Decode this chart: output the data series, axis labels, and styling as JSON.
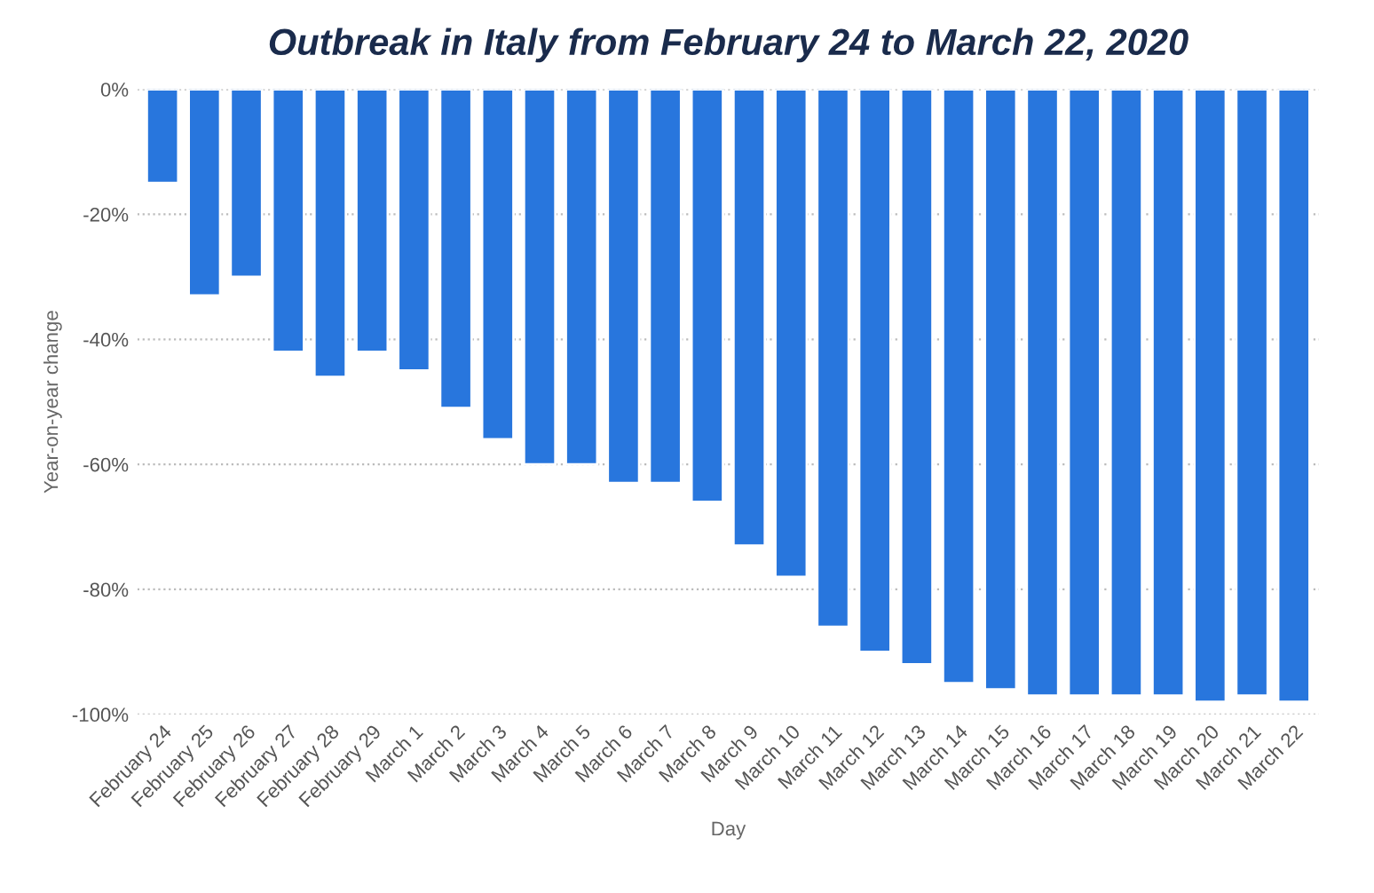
{
  "chart_data": {
    "type": "bar",
    "title": "Outbreak in Italy from February 24 to March 22, 2020",
    "xlabel": "Day",
    "ylabel": "Year-on-year change",
    "categories": [
      "February 24",
      "February 25",
      "February 26",
      "February 27",
      "February 28",
      "February 29",
      "March 1",
      "March 2",
      "March 3",
      "March 4",
      "March 5",
      "March 6",
      "March 7",
      "March 8",
      "March 9",
      "March 10",
      "March 11",
      "March 12",
      "March 13",
      "March 14",
      "March 15",
      "March 16",
      "March 17",
      "March 18",
      "March 19",
      "March 20",
      "March 21",
      "March 22"
    ],
    "values": [
      -15,
      -33,
      -30,
      -42,
      -46,
      -42,
      -45,
      -51,
      -56,
      -60,
      -60,
      -63,
      -63,
      -66,
      -73,
      -78,
      -86,
      -90,
      -92,
      -95,
      -96,
      -97,
      -97,
      -97,
      -97,
      -98,
      -97,
      -98
    ],
    "color": "#2876dd",
    "ylim": [
      -100,
      0
    ],
    "yticks": [
      {
        "value": 0,
        "label": "0%"
      },
      {
        "value": -20,
        "label": "-20%"
      },
      {
        "value": -40,
        "label": "-40%"
      },
      {
        "value": -60,
        "label": "-60%"
      },
      {
        "value": -80,
        "label": "-80%"
      },
      {
        "value": -100,
        "label": "-100%"
      }
    ],
    "grid": "y",
    "legend": false
  }
}
